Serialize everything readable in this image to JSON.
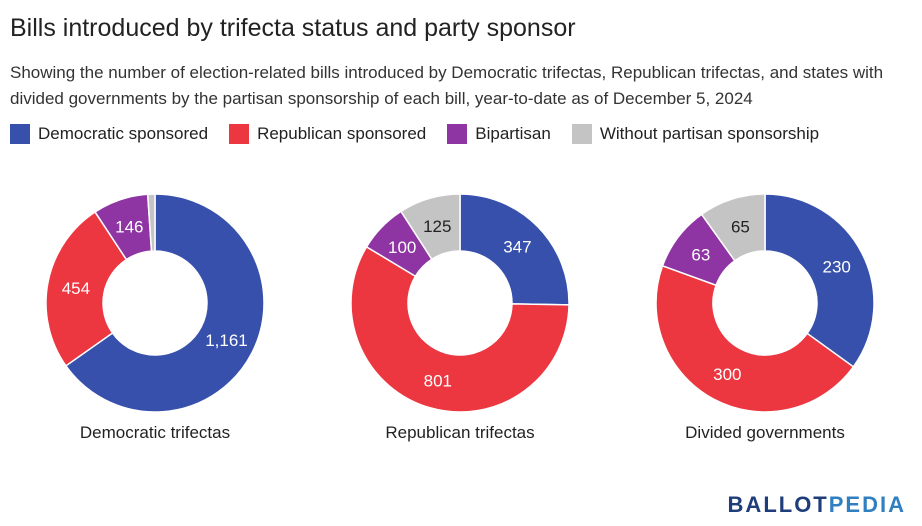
{
  "title": "Bills introduced by trifecta status and party sponsor",
  "subtitle": "Showing the number of election-related bills introduced by Democratic trifectas, Republican trifectas, and states with divided governments by the partisan sponsorship of each bill, year-to-date as of December 5, 2024",
  "legend": [
    {
      "label": "Democratic sponsored",
      "color": "#3650ac"
    },
    {
      "label": "Republican sponsored",
      "color": "#ec3640"
    },
    {
      "label": "Bipartisan",
      "color": "#8e35a3"
    },
    {
      "label": "Without partisan sponsorship",
      "color": "#c4c4c4"
    }
  ],
  "brand": {
    "part1": "BALLOT",
    "part2": "PEDIA"
  },
  "chart_data": [
    {
      "type": "pie",
      "label": "Democratic trifectas",
      "categories": [
        "Democratic sponsored",
        "Republican sponsored",
        "Bipartisan",
        "Without partisan sponsorship"
      ],
      "values": [
        1161,
        454,
        146,
        19
      ],
      "value_labels": [
        "1,161",
        "454",
        "146",
        ""
      ]
    },
    {
      "type": "pie",
      "label": "Republican trifectas",
      "categories": [
        "Democratic sponsored",
        "Republican sponsored",
        "Bipartisan",
        "Without partisan sponsorship"
      ],
      "values": [
        347,
        801,
        100,
        125
      ],
      "value_labels": [
        "347",
        "801",
        "100",
        "125"
      ]
    },
    {
      "type": "pie",
      "label": "Divided governments",
      "categories": [
        "Democratic sponsored",
        "Republican sponsored",
        "Bipartisan",
        "Without partisan sponsorship"
      ],
      "values": [
        230,
        300,
        63,
        65
      ],
      "value_labels": [
        "230",
        "300",
        "63",
        "65"
      ]
    }
  ]
}
